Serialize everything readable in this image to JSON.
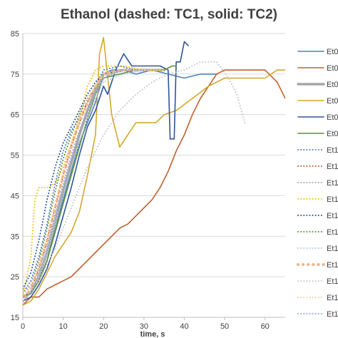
{
  "chart_data": {
    "type": "line",
    "title": "Ethanol (dashed: TC1, solid: TC2)",
    "xlabel": "time, s",
    "ylabel": "",
    "xlim": [
      0,
      65
    ],
    "ylim": [
      15,
      85
    ],
    "xticks": [
      0,
      10,
      20,
      30,
      40,
      50,
      60
    ],
    "yticks": [
      15,
      25,
      35,
      45,
      55,
      65,
      75,
      85
    ],
    "grid": "horizontal",
    "legend_position": "right",
    "series": [
      {
        "name": "Et0",
        "color": "#4e81bd",
        "dash": "solid",
        "width": 1.6,
        "x": [
          0,
          2,
          4,
          6,
          8,
          10,
          12,
          14,
          16,
          18,
          20,
          22,
          25,
          28,
          32,
          36,
          40,
          44,
          48
        ],
        "y": [
          20,
          21,
          24,
          29,
          37,
          44,
          51,
          58,
          63,
          68,
          75,
          76,
          76,
          75,
          76,
          75,
          74,
          75,
          75
        ]
      },
      {
        "name": "Et0",
        "color": "#c0622d",
        "dash": "solid",
        "width": 1.6,
        "x": [
          0,
          2,
          4,
          6,
          8,
          10,
          12,
          14,
          16,
          18,
          20,
          22,
          24,
          26,
          28,
          30,
          32,
          34,
          36,
          38,
          40,
          42,
          44,
          46,
          48,
          50,
          55,
          60,
          63,
          65
        ],
        "y": [
          18,
          20,
          20,
          22,
          23,
          24,
          25,
          27,
          29,
          31,
          33,
          35,
          37,
          38,
          40,
          42,
          44,
          47,
          51,
          56,
          60,
          65,
          69,
          72,
          75,
          76,
          76,
          76,
          73,
          69
        ]
      },
      {
        "name": "Et0",
        "color": "#a6a6a6",
        "dash": "solid",
        "width": 3.5,
        "x": [
          0,
          2,
          4,
          6,
          8,
          10,
          12,
          14,
          16,
          18,
          20,
          25,
          30,
          35
        ],
        "y": [
          20,
          21,
          25,
          31,
          38,
          46,
          53,
          60,
          66,
          71,
          75,
          76,
          76,
          76
        ]
      },
      {
        "name": "Et0",
        "color": "#d4a72c",
        "dash": "solid",
        "width": 1.6,
        "x": [
          0,
          2,
          4,
          6,
          8,
          10,
          12,
          14,
          16,
          18,
          19,
          20,
          22,
          24,
          26,
          28,
          30,
          33,
          35,
          38,
          42,
          46,
          50,
          55,
          60,
          63,
          65
        ],
        "y": [
          18,
          19,
          22,
          26,
          30,
          33,
          36,
          41,
          50,
          60,
          80,
          84,
          65,
          57,
          60,
          63,
          63,
          63,
          65,
          66,
          69,
          72,
          74,
          74,
          74,
          76,
          76
        ]
      },
      {
        "name": "Et0",
        "color": "#2f5597",
        "dash": "solid",
        "width": 1.6,
        "x": [
          0,
          2,
          4,
          6,
          8,
          10,
          12,
          14,
          16,
          18,
          20,
          21,
          23,
          25,
          27,
          30,
          34,
          36,
          36.5,
          37.5,
          38,
          39,
          40,
          41
        ],
        "y": [
          19,
          20,
          23,
          27,
          33,
          40,
          47,
          55,
          62,
          66,
          72,
          70,
          76,
          80,
          77,
          77,
          77,
          76,
          59,
          59,
          78,
          78,
          83,
          82
        ]
      },
      {
        "name": "Et0",
        "color": "#5a8f3a",
        "dash": "solid",
        "width": 1.6,
        "x": [
          0,
          2,
          4,
          6,
          8,
          10,
          12,
          14,
          16,
          18,
          20,
          24,
          28,
          32,
          35,
          37,
          38
        ],
        "y": [
          20,
          21,
          24,
          29,
          36,
          43,
          50,
          57,
          64,
          70,
          74,
          75,
          76,
          76,
          76,
          77,
          77
        ]
      },
      {
        "name": "Et1",
        "color": "#4e81bd",
        "dash": "dot",
        "width": 2,
        "x": [
          0,
          2,
          4,
          6,
          8,
          10,
          12,
          14,
          16,
          18,
          20,
          24,
          28,
          32
        ],
        "y": [
          21,
          24,
          30,
          38,
          48,
          56,
          61,
          64,
          68,
          72,
          76,
          77,
          76,
          76
        ]
      },
      {
        "name": "Et1",
        "color": "#c0622d",
        "dash": "dot",
        "width": 2,
        "x": [
          0,
          2,
          4,
          6,
          8,
          10,
          12,
          14,
          16,
          18,
          20,
          24,
          28
        ],
        "y": [
          20,
          22,
          27,
          34,
          42,
          50,
          57,
          63,
          68,
          72,
          75,
          76,
          76
        ]
      },
      {
        "name": "Et1",
        "color": "#a6a6a6",
        "dash": "dot",
        "width": 2,
        "x": [
          0,
          2,
          4,
          6,
          8,
          10,
          12,
          14,
          16,
          18,
          20,
          25,
          30
        ],
        "y": [
          21,
          23,
          27,
          33,
          40,
          47,
          54,
          60,
          65,
          70,
          74,
          76,
          76
        ]
      },
      {
        "name": "Et1",
        "color": "#f0c419",
        "dash": "dot",
        "width": 2,
        "x": [
          0,
          2,
          3,
          4,
          6,
          8,
          10,
          12,
          14,
          16,
          18,
          20,
          25,
          30,
          35
        ],
        "y": [
          20,
          30,
          44,
          47,
          47,
          48,
          52,
          58,
          64,
          72,
          76,
          77,
          77,
          76,
          76
        ]
      },
      {
        "name": "Et1",
        "color": "#2f5597",
        "dash": "dot",
        "width": 2,
        "x": [
          0,
          2,
          4,
          6,
          8,
          10,
          12,
          14,
          16,
          18,
          20,
          25,
          30
        ],
        "y": [
          22,
          26,
          34,
          44,
          52,
          58,
          62,
          66,
          70,
          73,
          75,
          76,
          76
        ]
      },
      {
        "name": "Et1",
        "color": "#5a8f3a",
        "dash": "dot",
        "width": 2,
        "x": [
          0,
          2,
          4,
          6,
          8,
          10,
          12,
          14,
          16,
          18,
          20,
          25
        ],
        "y": [
          20,
          23,
          29,
          37,
          46,
          54,
          60,
          65,
          69,
          72,
          75,
          76
        ]
      },
      {
        "name": "Et1",
        "color": "#b4c7e7",
        "dash": "dot",
        "width": 2,
        "x": [
          0,
          2,
          4,
          6,
          8,
          10,
          12,
          14,
          16,
          18,
          20,
          25,
          30
        ],
        "y": [
          19,
          21,
          25,
          31,
          38,
          45,
          52,
          58,
          64,
          69,
          73,
          75,
          76
        ]
      },
      {
        "name": "Et1",
        "color": "#f4b183",
        "dash": "dot",
        "width": 4,
        "x": [
          0,
          2,
          4,
          6,
          8,
          10,
          12,
          14,
          16,
          18,
          20,
          24,
          28,
          32
        ],
        "y": [
          19,
          22,
          27,
          34,
          42,
          50,
          57,
          63,
          68,
          72,
          75,
          76,
          76,
          76
        ]
      },
      {
        "name": "Et1",
        "color": "#c9c9c9",
        "dash": "dot",
        "width": 2,
        "x": [
          0,
          4,
          8,
          12,
          16,
          18,
          20,
          24,
          28,
          32,
          36,
          40,
          44,
          48,
          51,
          53,
          55
        ],
        "y": [
          20,
          24,
          32,
          42,
          52,
          56,
          60,
          66,
          70,
          73,
          75,
          76,
          78,
          78,
          74,
          70,
          63
        ]
      },
      {
        "name": "Et1",
        "color": "#f8cbad",
        "dash": "dot",
        "width": 2,
        "x": [
          0,
          2,
          4,
          6,
          8,
          10,
          12,
          14,
          16,
          18,
          20,
          25,
          30,
          35
        ],
        "y": [
          20,
          23,
          28,
          35,
          43,
          51,
          58,
          64,
          69,
          72,
          75,
          76,
          76,
          76
        ]
      },
      {
        "name": "Et1",
        "color": "#8faadc",
        "dash": "dot",
        "width": 2,
        "x": [
          0,
          2,
          4,
          6,
          8,
          10,
          12,
          14,
          16,
          18,
          20,
          24,
          28,
          32
        ],
        "y": [
          19,
          21,
          26,
          32,
          40,
          48,
          55,
          61,
          66,
          70,
          74,
          76,
          76,
          76
        ]
      }
    ]
  }
}
